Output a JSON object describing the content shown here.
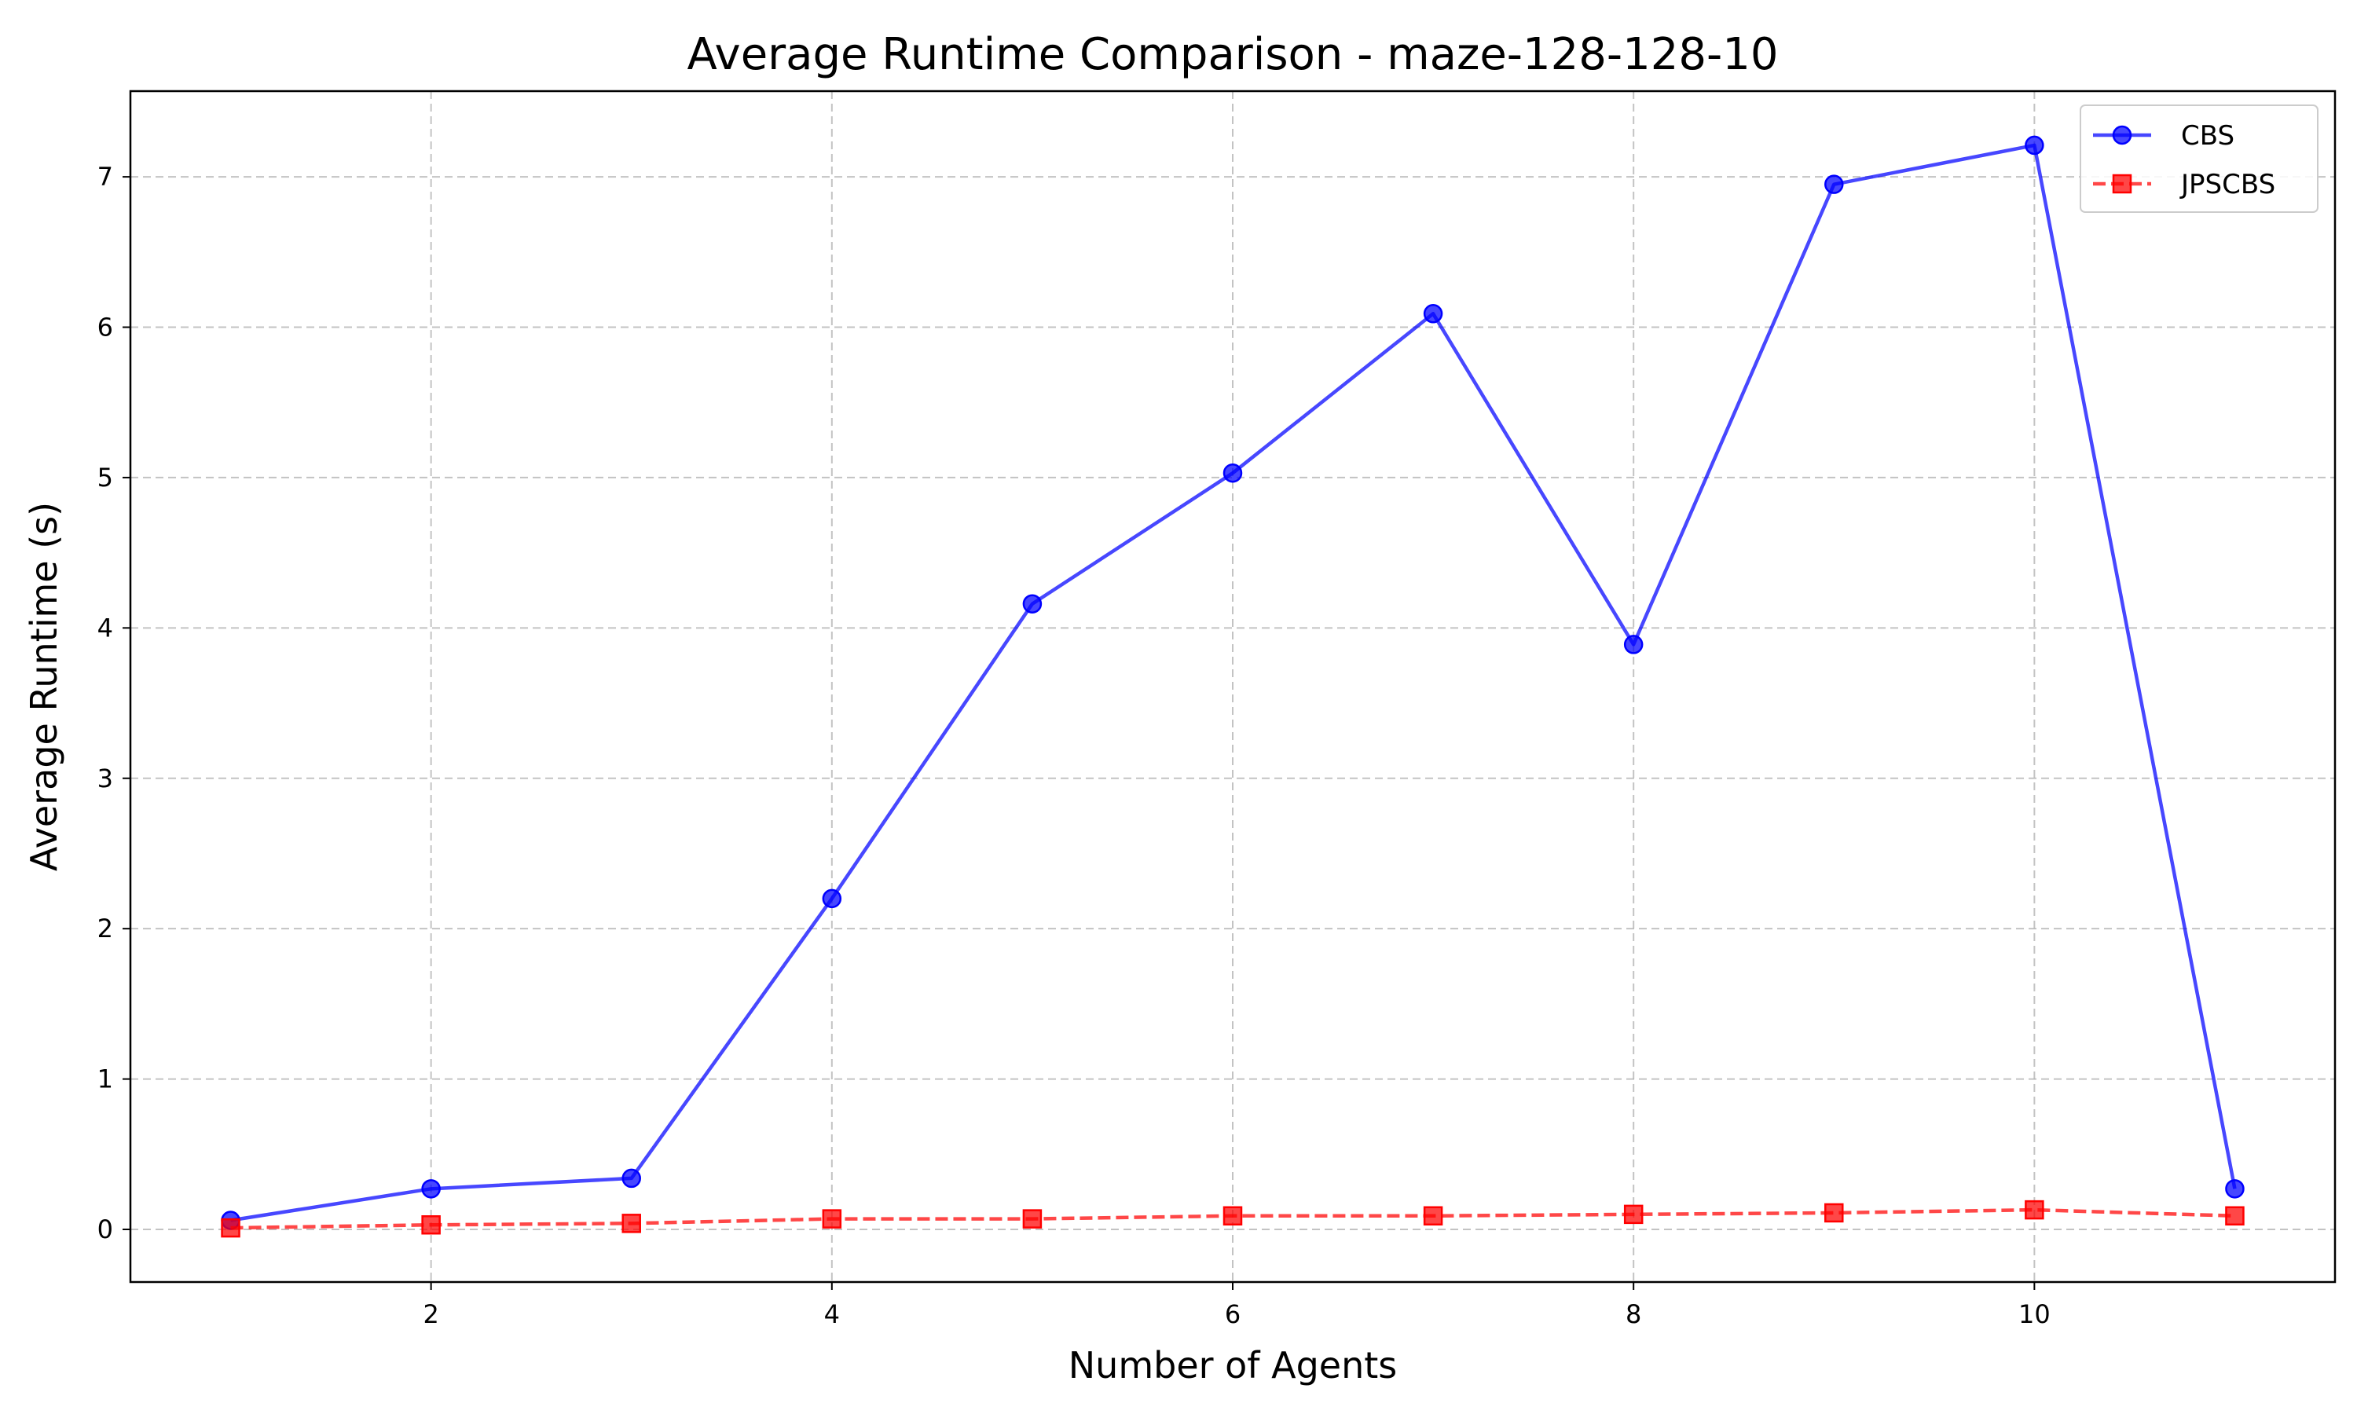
{
  "chart_data": {
    "type": "line",
    "title": "Average Runtime Comparison - maze-128-128-10",
    "xlabel": "Number of Agents",
    "ylabel": "Average Runtime (s)",
    "x": [
      1,
      2,
      3,
      4,
      5,
      6,
      7,
      8,
      9,
      10,
      11
    ],
    "xlim": [
      0.5,
      11.5
    ],
    "ylim": [
      -0.35,
      7.57
    ],
    "xticks": [
      2,
      4,
      6,
      8,
      10
    ],
    "yticks": [
      0,
      1,
      2,
      3,
      4,
      5,
      6,
      7
    ],
    "grid": true,
    "legend_position": "top-right",
    "series": [
      {
        "name": "CBS",
        "color": "#0000ff",
        "marker": "circle",
        "linestyle": "solid",
        "values": [
          0.06,
          0.27,
          0.34,
          2.2,
          4.16,
          5.03,
          6.09,
          3.89,
          6.95,
          7.21,
          0.27
        ]
      },
      {
        "name": "JPSCBS",
        "color": "#ff0000",
        "marker": "square",
        "linestyle": "dashed",
        "values": [
          0.01,
          0.03,
          0.04,
          0.07,
          0.07,
          0.09,
          0.09,
          0.1,
          0.11,
          0.13,
          0.09
        ]
      }
    ]
  }
}
